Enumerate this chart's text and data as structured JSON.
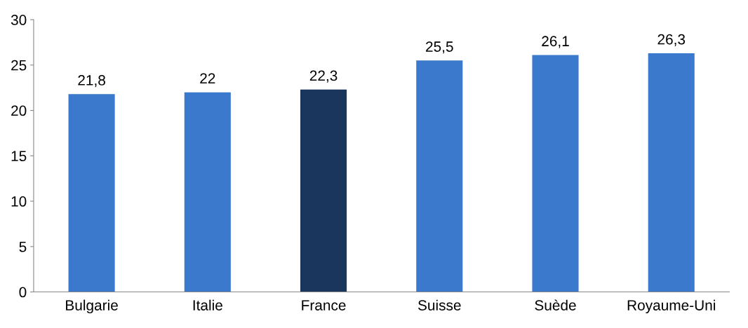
{
  "chart_data": {
    "type": "bar",
    "categories": [
      "Bulgarie",
      "Italie",
      "France",
      "Suisse",
      "Suède",
      "Royaume-Uni"
    ],
    "values": [
      21.8,
      22,
      22.3,
      25.5,
      26.1,
      26.3
    ],
    "value_labels": [
      "21,8",
      "22",
      "22,3",
      "25,5",
      "26,1",
      "26,3"
    ],
    "colors": [
      "#3a79cc",
      "#3a79cc",
      "#1b365d",
      "#3a79cc",
      "#3a79cc",
      "#3a79cc"
    ],
    "ylim": [
      0,
      30
    ],
    "yticks": [
      0,
      5,
      10,
      15,
      20,
      25,
      30
    ],
    "grid": false
  }
}
